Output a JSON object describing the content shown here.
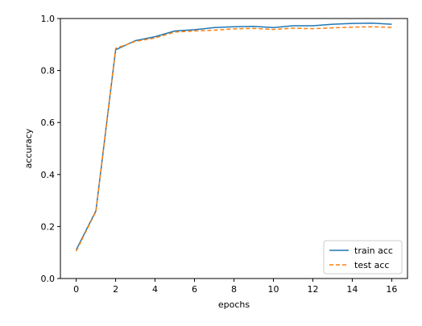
{
  "chart_data": {
    "type": "line",
    "xlabel": "epochs",
    "ylabel": "accuracy",
    "xlim": [
      -0.8,
      16.8
    ],
    "ylim": [
      0.0,
      1.0
    ],
    "x_ticks": [
      "0",
      "2",
      "4",
      "6",
      "8",
      "10",
      "12",
      "14",
      "16"
    ],
    "y_ticks": [
      "0.0",
      "0.2",
      "0.4",
      "0.6",
      "0.8",
      "1.0"
    ],
    "grid": false,
    "legend_position": "lower-right",
    "x": [
      0,
      1,
      2,
      3,
      4,
      5,
      6,
      7,
      8,
      9,
      10,
      11,
      12,
      13,
      14,
      15,
      16
    ],
    "series": [
      {
        "name": "train acc",
        "style": "solid",
        "color": "#1f77b4",
        "values": [
          0.11,
          0.26,
          0.88,
          0.915,
          0.93,
          0.952,
          0.957,
          0.965,
          0.968,
          0.97,
          0.965,
          0.972,
          0.972,
          0.978,
          0.981,
          0.982,
          0.978
        ]
      },
      {
        "name": "test acc",
        "style": "dashed",
        "color": "#ff7f0e",
        "values": [
          0.105,
          0.258,
          0.885,
          0.912,
          0.925,
          0.948,
          0.952,
          0.955,
          0.96,
          0.962,
          0.958,
          0.963,
          0.961,
          0.964,
          0.967,
          0.968,
          0.966
        ]
      }
    ]
  }
}
